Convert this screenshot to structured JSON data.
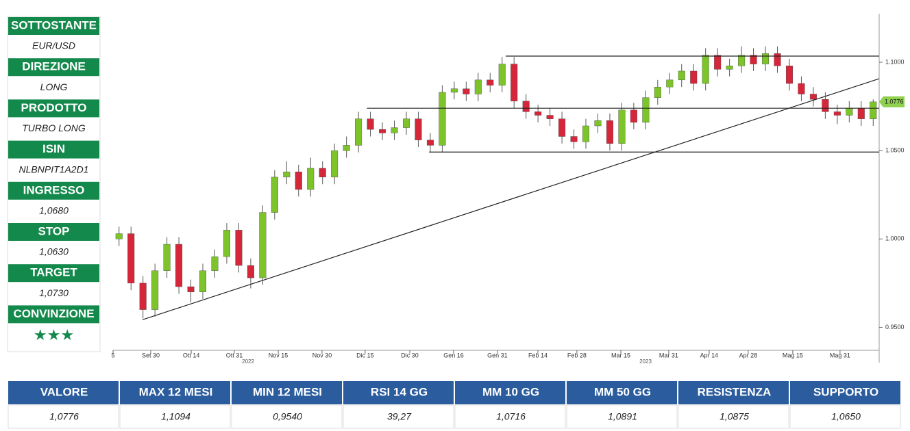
{
  "sidebar": [
    {
      "label": "SOTTOSTANTE",
      "value": "EUR/USD"
    },
    {
      "label": "DIREZIONE",
      "value": "LONG"
    },
    {
      "label": "PRODOTTO",
      "value": "TURBO LONG"
    },
    {
      "label": "ISIN",
      "value": "NLBNPIT1A2D1"
    },
    {
      "label": "INGRESSO",
      "value": "1,0680"
    },
    {
      "label": "STOP",
      "value": "1,0630"
    },
    {
      "label": "TARGET",
      "value": "1,0730"
    },
    {
      "label": "CONVINZIONE",
      "value": "★★★"
    }
  ],
  "chart_data": {
    "type": "candlestick",
    "up_color": "#7dc42a",
    "down_color": "#d6263a",
    "open": [
      1.0,
      1.003,
      0.975,
      0.96,
      0.982,
      0.997,
      0.973,
      0.97,
      0.982,
      0.99,
      1.005,
      0.985,
      0.978,
      1.015,
      1.035,
      1.038,
      1.028,
      1.04,
      1.035,
      1.05,
      1.053,
      1.068,
      1.062,
      1.06,
      1.063,
      1.068,
      1.056,
      1.053,
      1.083,
      1.085,
      1.082,
      1.09,
      1.087,
      1.099,
      1.078,
      1.072,
      1.07,
      1.068,
      1.058,
      1.055,
      1.064,
      1.067,
      1.054,
      1.073,
      1.066,
      1.08,
      1.086,
      1.09,
      1.095,
      1.088,
      1.104,
      1.096,
      1.098,
      1.104,
      1.099,
      1.105,
      1.098,
      1.088,
      1.082,
      1.079,
      1.072,
      1.07,
      1.074,
      1.068
    ],
    "high": [
      1.007,
      1.007,
      0.979,
      0.986,
      1.001,
      1.001,
      0.977,
      0.986,
      0.994,
      1.009,
      1.009,
      0.989,
      1.019,
      1.039,
      1.044,
      1.042,
      1.046,
      1.044,
      1.054,
      1.058,
      1.072,
      1.072,
      1.066,
      1.067,
      1.072,
      1.072,
      1.06,
      1.087,
      1.089,
      1.089,
      1.094,
      1.094,
      1.103,
      1.103,
      1.082,
      1.076,
      1.074,
      1.072,
      1.062,
      1.068,
      1.071,
      1.071,
      1.077,
      1.077,
      1.084,
      1.09,
      1.094,
      1.099,
      1.099,
      1.108,
      1.108,
      1.102,
      1.109,
      1.108,
      1.109,
      1.109,
      1.102,
      1.092,
      1.086,
      1.083,
      1.076,
      1.078,
      1.078,
      1.079
    ],
    "low": [
      0.996,
      0.971,
      0.955,
      0.956,
      0.978,
      0.969,
      0.964,
      0.966,
      0.978,
      0.986,
      0.981,
      0.972,
      0.974,
      1.011,
      1.031,
      1.024,
      1.024,
      1.031,
      1.031,
      1.046,
      1.049,
      1.058,
      1.056,
      1.056,
      1.059,
      1.052,
      1.049,
      1.049,
      1.079,
      1.078,
      1.078,
      1.083,
      1.083,
      1.074,
      1.068,
      1.066,
      1.064,
      1.054,
      1.051,
      1.051,
      1.06,
      1.05,
      1.05,
      1.062,
      1.062,
      1.076,
      1.082,
      1.086,
      1.084,
      1.084,
      1.092,
      1.092,
      1.094,
      1.095,
      1.095,
      1.094,
      1.084,
      1.078,
      1.075,
      1.068,
      1.065,
      1.066,
      1.064,
      1.064
    ],
    "close": [
      1.003,
      0.975,
      0.96,
      0.982,
      0.997,
      0.973,
      0.97,
      0.982,
      0.99,
      1.005,
      0.985,
      0.978,
      1.015,
      1.035,
      1.038,
      1.028,
      1.04,
      1.035,
      1.05,
      1.053,
      1.068,
      1.062,
      1.06,
      1.063,
      1.068,
      1.056,
      1.053,
      1.083,
      1.085,
      1.082,
      1.09,
      1.087,
      1.099,
      1.078,
      1.072,
      1.07,
      1.068,
      1.058,
      1.055,
      1.064,
      1.067,
      1.054,
      1.073,
      1.066,
      1.08,
      1.086,
      1.09,
      1.095,
      1.088,
      1.104,
      1.096,
      1.098,
      1.104,
      1.099,
      1.105,
      1.098,
      1.088,
      1.082,
      1.079,
      1.072,
      1.07,
      1.074,
      1.068,
      1.0776
    ],
    "xlim": [
      0,
      64
    ],
    "xticks": [
      {
        "value": 0,
        "label": "5"
      },
      {
        "value": 3.15,
        "label": "Set 30"
      },
      {
        "value": 6.53,
        "label": "Ott 14"
      },
      {
        "value": 10.13,
        "label": "Ott 31"
      },
      {
        "value": 13.8,
        "label": "Nov 15"
      },
      {
        "value": 17.46,
        "label": "Nov 30"
      },
      {
        "value": 21.06,
        "label": "Dic 15"
      },
      {
        "value": 24.79,
        "label": "Dic 30"
      },
      {
        "value": 28.45,
        "label": "Gen 16"
      },
      {
        "value": 32.11,
        "label": "Gen 31"
      },
      {
        "value": 35.49,
        "label": "Feb 14"
      },
      {
        "value": 38.75,
        "label": "Feb 28"
      },
      {
        "value": 42.42,
        "label": "Mar 15"
      },
      {
        "value": 46.42,
        "label": "Mar 31"
      },
      {
        "value": 49.8,
        "label": "Apr 14"
      },
      {
        "value": 53.06,
        "label": "Apr 28"
      },
      {
        "value": 56.78,
        "label": "Mag 15"
      },
      {
        "value": 60.73,
        "label": "Mag 31"
      }
    ],
    "years": [
      {
        "value": 11.28,
        "label": "2022"
      },
      {
        "value": 44.48,
        "label": "2023"
      }
    ],
    "ylim": [
      0.937,
      1.1275
    ],
    "yticks": [
      {
        "value": 0.95,
        "label": "0.9500"
      },
      {
        "value": 1.0,
        "label": "1.0000"
      },
      {
        "value": 1.05,
        "label": "1.0500"
      },
      {
        "value": 1.1,
        "label": "1.1000"
      }
    ],
    "last_price": 1.0776,
    "levels": [
      {
        "value": 1.1035,
        "from": 32.8
      },
      {
        "value": 1.074,
        "from": 21.2
      },
      {
        "value": 1.0492,
        "from": 26.4
      }
    ],
    "trendline": {
      "x": [
        2.46,
        64
      ],
      "y": [
        0.9543,
        1.0907
      ]
    }
  },
  "table": {
    "headers": [
      "VALORE",
      "MAX 12 MESI",
      "MIN 12 MESI",
      "RSI 14 GG",
      "MM 10 GG",
      "MM 50 GG",
      "RESISTENZA",
      "SUPPORTO"
    ],
    "values": [
      "1,0776",
      "1,1094",
      "0,9540",
      "39,27",
      "1,0716",
      "1,0891",
      "1,0875",
      "1,0650"
    ]
  }
}
